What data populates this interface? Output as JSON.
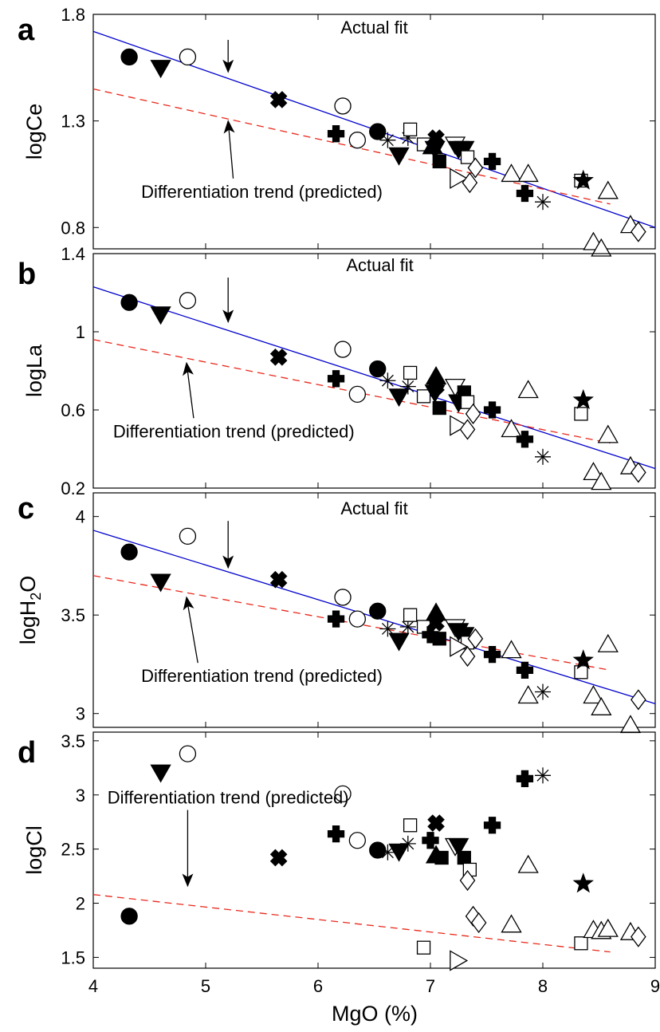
{
  "markers": {
    "filled-circle": {
      "fill": true
    },
    "open-circle": {
      "fill": false
    },
    "filled-triangle-down": {
      "fill": true
    },
    "open-triangle-down": {
      "fill": false
    },
    "filled-triangle-up": {
      "fill": true
    },
    "open-triangle-up": {
      "fill": false
    },
    "filled-cross": {
      "fill": true
    },
    "filled-plus": {
      "fill": true
    },
    "filled-square": {
      "fill": true
    },
    "open-square": {
      "fill": false
    },
    "open-diamond": {
      "fill": false
    },
    "open-triangle-right": {
      "fill": false
    },
    "asterisk": {
      "fill": false
    },
    "filled-star": {
      "fill": true
    }
  },
  "colors": {
    "actual_fit": "#0000cc",
    "predicted_trend": "#e8291c",
    "markers": "#000000"
  },
  "chart_data": [
    {
      "type": "scatter",
      "panel_label": "a",
      "ylabel": "logCe",
      "xlim": [
        4,
        9
      ],
      "ylim": [
        0.7,
        1.8
      ],
      "yticks": [
        "0.8",
        "1.3",
        "1.8"
      ],
      "lines": [
        {
          "name": "Actual fit",
          "style": "solid",
          "color": "#0000cc",
          "x": [
            4,
            9
          ],
          "y": [
            1.72,
            0.8
          ]
        },
        {
          "name": "Differentiation trend (predicted)",
          "style": "dashed",
          "color": "#e8291c",
          "x": [
            4,
            8.6
          ],
          "y": [
            1.45,
            0.91
          ]
        }
      ],
      "annotations": [
        {
          "text": "Actual fit",
          "text_x": 6.5,
          "text_y": 1.71,
          "arrow_to_x": 5.2,
          "arrow_to_y": 1.53
        },
        {
          "text": "Differentiation trend (predicted)",
          "text_x": 5.5,
          "text_y": 0.94,
          "arrow_to_x": 5.2,
          "arrow_to_y": 1.3
        }
      ],
      "points": [
        {
          "m": "filled-circle",
          "x": 4.32,
          "y": 1.6
        },
        {
          "m": "filled-triangle-down",
          "x": 4.6,
          "y": 1.55
        },
        {
          "m": "open-circle",
          "x": 4.84,
          "y": 1.6
        },
        {
          "m": "filled-cross",
          "x": 5.65,
          "y": 1.4
        },
        {
          "m": "open-circle",
          "x": 6.22,
          "y": 1.37
        },
        {
          "m": "filled-plus",
          "x": 6.16,
          "y": 1.24
        },
        {
          "m": "open-circle",
          "x": 6.35,
          "y": 1.21
        },
        {
          "m": "filled-circle",
          "x": 6.53,
          "y": 1.25
        },
        {
          "m": "asterisk",
          "x": 6.62,
          "y": 1.21
        },
        {
          "m": "filled-triangle-down",
          "x": 6.72,
          "y": 1.14
        },
        {
          "m": "asterisk",
          "x": 6.8,
          "y": 1.22
        },
        {
          "m": "open-square",
          "x": 6.82,
          "y": 1.26
        },
        {
          "m": "open-square",
          "x": 6.94,
          "y": 1.19
        },
        {
          "m": "filled-triangle-up",
          "x": 7.02,
          "y": 1.18
        },
        {
          "m": "filled-cross",
          "x": 7.05,
          "y": 1.22
        },
        {
          "m": "filled-triangle-down",
          "x": 7.04,
          "y": 1.17
        },
        {
          "m": "filled-square",
          "x": 7.08,
          "y": 1.11
        },
        {
          "m": "open-triangle-down",
          "x": 7.22,
          "y": 1.19
        },
        {
          "m": "filled-triangle-down",
          "x": 7.25,
          "y": 1.17
        },
        {
          "m": "filled-triangle-down",
          "x": 7.3,
          "y": 1.17
        },
        {
          "m": "open-square",
          "x": 7.33,
          "y": 1.13
        },
        {
          "m": "open-triangle-right",
          "x": 7.24,
          "y": 1.03
        },
        {
          "m": "open-diamond",
          "x": 7.4,
          "y": 1.08
        },
        {
          "m": "open-diamond",
          "x": 7.35,
          "y": 1.01
        },
        {
          "m": "filled-plus",
          "x": 7.55,
          "y": 1.11
        },
        {
          "m": "open-triangle-up",
          "x": 7.72,
          "y": 1.05
        },
        {
          "m": "open-triangle-up",
          "x": 7.87,
          "y": 1.05
        },
        {
          "m": "filled-plus",
          "x": 7.84,
          "y": 0.96
        },
        {
          "m": "asterisk",
          "x": 8.0,
          "y": 0.92
        },
        {
          "m": "open-square",
          "x": 8.34,
          "y": 1.02
        },
        {
          "m": "filled-star",
          "x": 8.36,
          "y": 1.02
        },
        {
          "m": "open-triangle-up",
          "x": 8.58,
          "y": 0.97
        },
        {
          "m": "open-triangle-up",
          "x": 8.45,
          "y": 0.73
        },
        {
          "m": "open-triangle-up",
          "x": 8.52,
          "y": 0.7
        },
        {
          "m": "open-triangle-up",
          "x": 8.78,
          "y": 0.81
        },
        {
          "m": "open-diamond",
          "x": 8.85,
          "y": 0.78
        }
      ]
    },
    {
      "type": "scatter",
      "panel_label": "b",
      "ylabel": "logLa",
      "xlim": [
        4,
        9
      ],
      "ylim": [
        0.2,
        1.4
      ],
      "yticks": [
        "0.2",
        "0.6",
        "1",
        "1.4"
      ],
      "lines": [
        {
          "name": "Actual fit",
          "style": "solid",
          "color": "#0000cc",
          "x": [
            4,
            9
          ],
          "y": [
            1.23,
            0.3
          ]
        },
        {
          "name": "Differentiation trend (predicted)",
          "style": "dashed",
          "color": "#e8291c",
          "x": [
            4,
            8.6
          ],
          "y": [
            0.96,
            0.43
          ]
        }
      ],
      "annotations": [
        {
          "text": "Actual fit",
          "text_x": 6.55,
          "text_y": 1.31,
          "arrow_to_x": 5.2,
          "arrow_to_y": 1.05
        },
        {
          "text": "Differentiation trend (predicted)",
          "text_x": 5.25,
          "text_y": 0.46,
          "arrow_to_x": 4.83,
          "arrow_to_y": 0.84
        }
      ],
      "points": [
        {
          "m": "filled-circle",
          "x": 4.32,
          "y": 1.15
        },
        {
          "m": "filled-triangle-down",
          "x": 4.6,
          "y": 1.09
        },
        {
          "m": "open-circle",
          "x": 4.84,
          "y": 1.16
        },
        {
          "m": "filled-cross",
          "x": 5.65,
          "y": 0.87
        },
        {
          "m": "open-circle",
          "x": 6.22,
          "y": 0.91
        },
        {
          "m": "filled-plus",
          "x": 6.16,
          "y": 0.76
        },
        {
          "m": "open-circle",
          "x": 6.35,
          "y": 0.68
        },
        {
          "m": "filled-circle",
          "x": 6.53,
          "y": 0.81
        },
        {
          "m": "asterisk",
          "x": 6.62,
          "y": 0.75
        },
        {
          "m": "filled-triangle-down",
          "x": 6.72,
          "y": 0.67
        },
        {
          "m": "asterisk",
          "x": 6.8,
          "y": 0.72
        },
        {
          "m": "open-square",
          "x": 6.82,
          "y": 0.79
        },
        {
          "m": "open-square",
          "x": 6.94,
          "y": 0.67
        },
        {
          "m": "filled-triangle-up",
          "x": 7.05,
          "y": 0.77
        },
        {
          "m": "filled-cross",
          "x": 7.05,
          "y": 0.72
        },
        {
          "m": "filled-triangle-down",
          "x": 7.04,
          "y": 0.69
        },
        {
          "m": "filled-square",
          "x": 7.08,
          "y": 0.61
        },
        {
          "m": "open-triangle-down",
          "x": 7.22,
          "y": 0.72
        },
        {
          "m": "filled-triangle-down",
          "x": 7.25,
          "y": 0.64
        },
        {
          "m": "filled-square",
          "x": 7.3,
          "y": 0.69
        },
        {
          "m": "open-square",
          "x": 7.33,
          "y": 0.64
        },
        {
          "m": "open-triangle-right",
          "x": 7.24,
          "y": 0.52
        },
        {
          "m": "open-diamond",
          "x": 7.38,
          "y": 0.58
        },
        {
          "m": "open-diamond",
          "x": 7.33,
          "y": 0.5
        },
        {
          "m": "filled-plus",
          "x": 7.55,
          "y": 0.6
        },
        {
          "m": "open-triangle-up",
          "x": 7.72,
          "y": 0.5
        },
        {
          "m": "open-triangle-up",
          "x": 7.87,
          "y": 0.7
        },
        {
          "m": "filled-plus",
          "x": 7.84,
          "y": 0.45
        },
        {
          "m": "asterisk",
          "x": 8.0,
          "y": 0.36
        },
        {
          "m": "open-square",
          "x": 8.34,
          "y": 0.58
        },
        {
          "m": "filled-star",
          "x": 8.36,
          "y": 0.65
        },
        {
          "m": "open-triangle-up",
          "x": 8.58,
          "y": 0.47
        },
        {
          "m": "open-triangle-up",
          "x": 8.45,
          "y": 0.28
        },
        {
          "m": "open-triangle-up",
          "x": 8.52,
          "y": 0.23
        },
        {
          "m": "open-triangle-up",
          "x": 8.78,
          "y": 0.31
        },
        {
          "m": "open-diamond",
          "x": 8.85,
          "y": 0.28
        }
      ]
    },
    {
      "type": "scatter",
      "panel_label": "c",
      "ylabel_main": "logH",
      "ylabel_sub": "2",
      "ylabel_end": "O",
      "xlim": [
        4,
        9
      ],
      "ylim": [
        2.93,
        4.12
      ],
      "yticks": [
        "3",
        "3.5",
        "4"
      ],
      "lines": [
        {
          "name": "Actual fit",
          "style": "solid",
          "color": "#0000cc",
          "x": [
            4,
            9
          ],
          "y": [
            3.93,
            3.05
          ]
        },
        {
          "name": "Differentiation trend (predicted)",
          "style": "dashed",
          "color": "#e8291c",
          "x": [
            4,
            8.6
          ],
          "y": [
            3.7,
            3.22
          ]
        }
      ],
      "annotations": [
        {
          "text": "Actual fit",
          "text_x": 6.5,
          "text_y": 4.01,
          "arrow_to_x": 5.2,
          "arrow_to_y": 3.74
        },
        {
          "text": "Differentiation trend (predicted)",
          "text_x": 5.5,
          "text_y": 3.16,
          "arrow_to_x": 4.83,
          "arrow_to_y": 3.59
        }
      ],
      "points": [
        {
          "m": "filled-circle",
          "x": 4.32,
          "y": 3.82
        },
        {
          "m": "filled-triangle-down",
          "x": 4.6,
          "y": 3.67
        },
        {
          "m": "open-circle",
          "x": 4.84,
          "y": 3.9
        },
        {
          "m": "filled-cross",
          "x": 5.65,
          "y": 3.68
        },
        {
          "m": "open-circle",
          "x": 6.22,
          "y": 3.59
        },
        {
          "m": "filled-plus",
          "x": 6.16,
          "y": 3.48
        },
        {
          "m": "open-circle",
          "x": 6.35,
          "y": 3.48
        },
        {
          "m": "filled-circle",
          "x": 6.53,
          "y": 3.52
        },
        {
          "m": "asterisk",
          "x": 6.62,
          "y": 3.43
        },
        {
          "m": "filled-triangle-down",
          "x": 6.72,
          "y": 3.37
        },
        {
          "m": "asterisk",
          "x": 6.8,
          "y": 3.44
        },
        {
          "m": "open-square",
          "x": 6.82,
          "y": 3.5
        },
        {
          "m": "open-square",
          "x": 6.94,
          "y": 3.44
        },
        {
          "m": "filled-triangle-up",
          "x": 7.05,
          "y": 3.51
        },
        {
          "m": "filled-cross",
          "x": 7.05,
          "y": 3.46
        },
        {
          "m": "filled-plus",
          "x": 7.0,
          "y": 3.4
        },
        {
          "m": "filled-square",
          "x": 7.08,
          "y": 3.38
        },
        {
          "m": "open-triangle-down",
          "x": 7.22,
          "y": 3.44
        },
        {
          "m": "filled-triangle-down",
          "x": 7.25,
          "y": 3.42
        },
        {
          "m": "filled-triangle-down",
          "x": 7.3,
          "y": 3.4
        },
        {
          "m": "open-square",
          "x": 7.33,
          "y": 3.36
        },
        {
          "m": "open-triangle-right",
          "x": 7.24,
          "y": 3.34
        },
        {
          "m": "open-diamond",
          "x": 7.4,
          "y": 3.38
        },
        {
          "m": "open-diamond",
          "x": 7.33,
          "y": 3.29
        },
        {
          "m": "filled-plus",
          "x": 7.55,
          "y": 3.3
        },
        {
          "m": "open-triangle-up",
          "x": 7.72,
          "y": 3.32
        },
        {
          "m": "open-triangle-up",
          "x": 7.87,
          "y": 3.09
        },
        {
          "m": "filled-plus",
          "x": 7.84,
          "y": 3.22
        },
        {
          "m": "asterisk",
          "x": 8.0,
          "y": 3.11
        },
        {
          "m": "open-square",
          "x": 8.34,
          "y": 3.21
        },
        {
          "m": "filled-star",
          "x": 8.36,
          "y": 3.27
        },
        {
          "m": "open-triangle-up",
          "x": 8.58,
          "y": 3.35
        },
        {
          "m": "open-triangle-up",
          "x": 8.45,
          "y": 3.09
        },
        {
          "m": "open-triangle-up",
          "x": 8.52,
          "y": 3.03
        },
        {
          "m": "open-triangle-up",
          "x": 8.78,
          "y": 2.94
        },
        {
          "m": "open-diamond",
          "x": 8.85,
          "y": 3.07
        }
      ]
    },
    {
      "type": "scatter",
      "panel_label": "d",
      "ylabel": "logCl",
      "xlabel": "MgO (%)",
      "xlim": [
        4,
        9
      ],
      "ylim": [
        1.4,
        3.58
      ],
      "yticks": [
        "1.5",
        "2",
        "2.5",
        "3",
        "3.5"
      ],
      "xticks": [
        "4",
        "5",
        "6",
        "7",
        "8",
        "9"
      ],
      "lines": [
        {
          "name": "Differentiation trend (predicted)",
          "style": "dashed",
          "color": "#e8291c",
          "x": [
            4,
            8.6
          ],
          "y": [
            2.08,
            1.55
          ]
        }
      ],
      "annotations": [
        {
          "text": "Differentiation trend (predicted)",
          "text_x": 5.2,
          "text_y": 2.92,
          "arrow_to_x": 4.84,
          "arrow_to_y": 2.16
        }
      ],
      "points": [
        {
          "m": "filled-circle",
          "x": 4.32,
          "y": 1.88
        },
        {
          "m": "filled-triangle-down",
          "x": 4.6,
          "y": 3.21
        },
        {
          "m": "open-circle",
          "x": 4.84,
          "y": 3.38
        },
        {
          "m": "filled-cross",
          "x": 5.65,
          "y": 2.42
        },
        {
          "m": "open-circle",
          "x": 6.22,
          "y": 3.01
        },
        {
          "m": "filled-plus",
          "x": 6.16,
          "y": 2.64
        },
        {
          "m": "open-circle",
          "x": 6.35,
          "y": 2.58
        },
        {
          "m": "filled-circle",
          "x": 6.53,
          "y": 2.49
        },
        {
          "m": "asterisk",
          "x": 6.62,
          "y": 2.47
        },
        {
          "m": "filled-triangle-down",
          "x": 6.72,
          "y": 2.48
        },
        {
          "m": "asterisk",
          "x": 6.8,
          "y": 2.55
        },
        {
          "m": "open-square",
          "x": 6.82,
          "y": 2.72
        },
        {
          "m": "open-square",
          "x": 6.94,
          "y": 1.59
        },
        {
          "m": "filled-plus",
          "x": 7.0,
          "y": 2.58
        },
        {
          "m": "filled-cross",
          "x": 7.05,
          "y": 2.74
        },
        {
          "m": "filled-triangle-up",
          "x": 7.05,
          "y": 2.44
        },
        {
          "m": "filled-square",
          "x": 7.1,
          "y": 2.42
        },
        {
          "m": "open-triangle-down",
          "x": 7.22,
          "y": 2.53
        },
        {
          "m": "filled-triangle-down",
          "x": 7.25,
          "y": 2.53
        },
        {
          "m": "filled-square",
          "x": 7.3,
          "y": 2.42
        },
        {
          "m": "open-square",
          "x": 7.35,
          "y": 2.31
        },
        {
          "m": "open-diamond",
          "x": 7.33,
          "y": 2.21
        },
        {
          "m": "open-triangle-right",
          "x": 7.24,
          "y": 1.47
        },
        {
          "m": "open-diamond",
          "x": 7.38,
          "y": 1.88
        },
        {
          "m": "open-diamond",
          "x": 7.43,
          "y": 1.82
        },
        {
          "m": "filled-plus",
          "x": 7.55,
          "y": 2.72
        },
        {
          "m": "open-triangle-up",
          "x": 7.72,
          "y": 1.8
        },
        {
          "m": "open-triangle-up",
          "x": 7.87,
          "y": 2.35
        },
        {
          "m": "filled-plus",
          "x": 7.84,
          "y": 3.15
        },
        {
          "m": "asterisk",
          "x": 8.0,
          "y": 3.18
        },
        {
          "m": "open-square",
          "x": 8.34,
          "y": 1.63
        },
        {
          "m": "filled-star",
          "x": 8.36,
          "y": 2.18
        },
        {
          "m": "open-triangle-up",
          "x": 8.45,
          "y": 1.75
        },
        {
          "m": "open-triangle-up",
          "x": 8.52,
          "y": 1.74
        },
        {
          "m": "open-triangle-up",
          "x": 8.58,
          "y": 1.76
        },
        {
          "m": "open-triangle-up",
          "x": 8.78,
          "y": 1.73
        },
        {
          "m": "open-diamond",
          "x": 8.85,
          "y": 1.69
        }
      ]
    }
  ]
}
